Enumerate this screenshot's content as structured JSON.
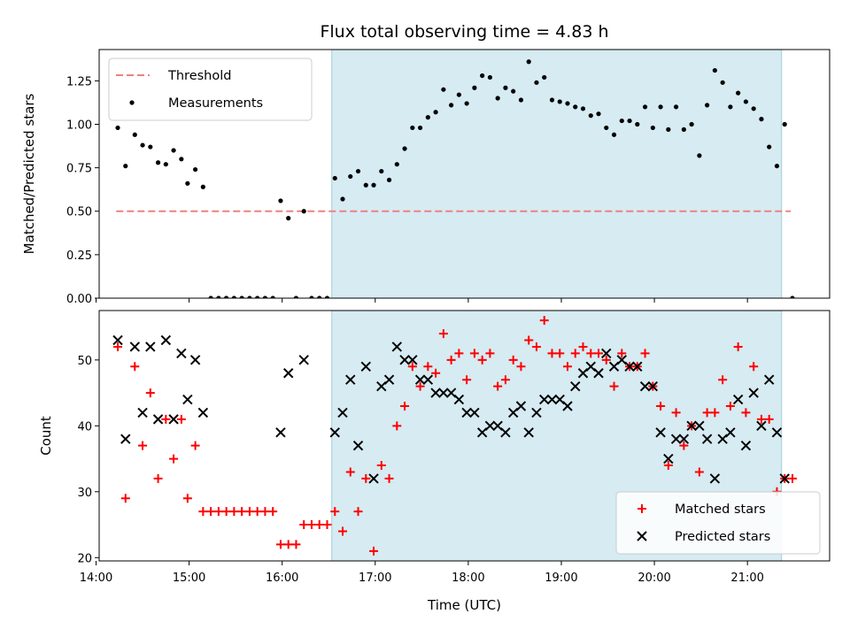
{
  "chart_data": [
    {
      "type": "scatter",
      "title": "Flux total observing time = 4.83 h",
      "xlabel": "",
      "ylabel": "Matched/Predicted stars",
      "xlim": [
        "14:02",
        "21:53"
      ],
      "ylim": [
        0,
        1.43
      ],
      "yticks": [
        "0.00",
        "0.25",
        "0.50",
        "0.75",
        "1.00",
        "1.25"
      ],
      "shaded_span": [
        "16:32",
        "21:22"
      ],
      "threshold": {
        "name": "Threshold",
        "value": 0.5,
        "x_range": [
          "14:13",
          "21:28"
        ],
        "color": "#f08080"
      },
      "legend_position": "upper left",
      "series": [
        {
          "name": "Measurements",
          "color": "#000000",
          "marker": "dot",
          "points": [
            [
              "14:14",
              0.98
            ],
            [
              "14:19",
              0.76
            ],
            [
              "14:25",
              0.94
            ],
            [
              "14:30",
              0.88
            ],
            [
              "14:35",
              0.87
            ],
            [
              "14:40",
              0.78
            ],
            [
              "14:45",
              0.77
            ],
            [
              "14:50",
              0.85
            ],
            [
              "14:55",
              0.8
            ],
            [
              "14:59",
              0.66
            ],
            [
              "15:04",
              0.74
            ],
            [
              "15:09",
              0.64
            ],
            [
              "15:14",
              0
            ],
            [
              "15:19",
              0
            ],
            [
              "15:24",
              0
            ],
            [
              "15:29",
              0
            ],
            [
              "15:34",
              0
            ],
            [
              "15:39",
              0
            ],
            [
              "15:44",
              0
            ],
            [
              "15:49",
              0
            ],
            [
              "15:54",
              0
            ],
            [
              "15:59",
              0.56
            ],
            [
              "16:04",
              0.46
            ],
            [
              "16:09",
              0
            ],
            [
              "16:14",
              0.5
            ],
            [
              "16:19",
              0
            ],
            [
              "16:24",
              0
            ],
            [
              "16:29",
              0
            ],
            [
              "16:34",
              0.69
            ],
            [
              "16:39",
              0.57
            ],
            [
              "16:44",
              0.7
            ],
            [
              "16:49",
              0.73
            ],
            [
              "16:54",
              0.65
            ],
            [
              "16:59",
              0.65
            ],
            [
              "17:04",
              0.73
            ],
            [
              "17:09",
              0.68
            ],
            [
              "17:14",
              0.77
            ],
            [
              "17:19",
              0.86
            ],
            [
              "17:24",
              0.98
            ],
            [
              "17:29",
              0.98
            ],
            [
              "17:34",
              1.04
            ],
            [
              "17:39",
              1.07
            ],
            [
              "17:44",
              1.2
            ],
            [
              "17:49",
              1.11
            ],
            [
              "17:54",
              1.17
            ],
            [
              "17:59",
              1.12
            ],
            [
              "18:04",
              1.21
            ],
            [
              "18:09",
              1.28
            ],
            [
              "18:14",
              1.27
            ],
            [
              "18:19",
              1.15
            ],
            [
              "18:24",
              1.21
            ],
            [
              "18:29",
              1.19
            ],
            [
              "18:34",
              1.14
            ],
            [
              "18:39",
              1.36
            ],
            [
              "18:44",
              1.24
            ],
            [
              "18:49",
              1.27
            ],
            [
              "18:54",
              1.14
            ],
            [
              "18:59",
              1.13
            ],
            [
              "19:04",
              1.12
            ],
            [
              "19:09",
              1.1
            ],
            [
              "19:14",
              1.09
            ],
            [
              "19:19",
              1.05
            ],
            [
              "19:24",
              1.06
            ],
            [
              "19:29",
              0.98
            ],
            [
              "19:34",
              0.94
            ],
            [
              "19:39",
              1.02
            ],
            [
              "19:44",
              1.02
            ],
            [
              "19:49",
              1.0
            ],
            [
              "19:54",
              1.1
            ],
            [
              "19:59",
              0.98
            ],
            [
              "20:04",
              1.1
            ],
            [
              "20:09",
              0.97
            ],
            [
              "20:14",
              1.1
            ],
            [
              "20:19",
              0.97
            ],
            [
              "20:24",
              1.0
            ],
            [
              "20:29",
              0.82
            ],
            [
              "20:34",
              1.11
            ],
            [
              "20:39",
              1.31
            ],
            [
              "20:44",
              1.24
            ],
            [
              "20:49",
              1.1
            ],
            [
              "20:54",
              1.18
            ],
            [
              "20:59",
              1.13
            ],
            [
              "21:04",
              1.09
            ],
            [
              "21:09",
              1.03
            ],
            [
              "21:14",
              0.87
            ],
            [
              "21:19",
              0.76
            ],
            [
              "21:24",
              1.0
            ],
            [
              "21:29",
              0
            ]
          ]
        }
      ]
    },
    {
      "type": "scatter",
      "title": "",
      "xlabel": "Time (UTC)",
      "ylabel": "Count",
      "xlim": [
        "14:02",
        "21:53"
      ],
      "ylim": [
        19.5,
        57.5
      ],
      "xticks": [
        "14:00",
        "15:00",
        "16:00",
        "17:00",
        "18:00",
        "19:00",
        "20:00",
        "21:00"
      ],
      "yticks": [
        "20",
        "30",
        "40",
        "50"
      ],
      "shaded_span": [
        "16:32",
        "21:22"
      ],
      "legend_position": "lower right",
      "series": [
        {
          "name": "Matched stars",
          "color": "#ff0000",
          "marker": "plus",
          "points": [
            [
              "14:14",
              52
            ],
            [
              "14:19",
              29
            ],
            [
              "14:25",
              49
            ],
            [
              "14:30",
              37
            ],
            [
              "14:35",
              45
            ],
            [
              "14:40",
              32
            ],
            [
              "14:45",
              41
            ],
            [
              "14:50",
              35
            ],
            [
              "14:55",
              41
            ],
            [
              "14:59",
              29
            ],
            [
              "15:04",
              37
            ],
            [
              "15:09",
              27
            ],
            [
              "15:14",
              27
            ],
            [
              "15:19",
              27
            ],
            [
              "15:24",
              27
            ],
            [
              "15:29",
              27
            ],
            [
              "15:34",
              27
            ],
            [
              "15:39",
              27
            ],
            [
              "15:44",
              27
            ],
            [
              "15:49",
              27
            ],
            [
              "15:54",
              27
            ],
            [
              "15:59",
              22
            ],
            [
              "16:04",
              22
            ],
            [
              "16:09",
              22
            ],
            [
              "16:14",
              25
            ],
            [
              "16:19",
              25
            ],
            [
              "16:24",
              25
            ],
            [
              "16:29",
              25
            ],
            [
              "16:34",
              27
            ],
            [
              "16:39",
              24
            ],
            [
              "16:44",
              33
            ],
            [
              "16:49",
              27
            ],
            [
              "16:54",
              32
            ],
            [
              "16:59",
              21
            ],
            [
              "17:04",
              34
            ],
            [
              "17:09",
              32
            ],
            [
              "17:14",
              40
            ],
            [
              "17:19",
              43
            ],
            [
              "17:24",
              49
            ],
            [
              "17:29",
              46
            ],
            [
              "17:34",
              49
            ],
            [
              "17:39",
              48
            ],
            [
              "17:44",
              54
            ],
            [
              "17:49",
              50
            ],
            [
              "17:54",
              51
            ],
            [
              "17:59",
              47
            ],
            [
              "18:04",
              51
            ],
            [
              "18:09",
              50
            ],
            [
              "18:14",
              51
            ],
            [
              "18:19",
              46
            ],
            [
              "18:24",
              47
            ],
            [
              "18:29",
              50
            ],
            [
              "18:34",
              49
            ],
            [
              "18:39",
              53
            ],
            [
              "18:44",
              52
            ],
            [
              "18:49",
              56
            ],
            [
              "18:54",
              51
            ],
            [
              "18:59",
              51
            ],
            [
              "19:04",
              49
            ],
            [
              "19:09",
              51
            ],
            [
              "19:14",
              52
            ],
            [
              "19:19",
              51
            ],
            [
              "19:24",
              51
            ],
            [
              "19:29",
              50
            ],
            [
              "19:34",
              46
            ],
            [
              "19:39",
              51
            ],
            [
              "19:44",
              49
            ],
            [
              "19:49",
              49
            ],
            [
              "19:54",
              51
            ],
            [
              "19:59",
              46
            ],
            [
              "20:04",
              43
            ],
            [
              "20:09",
              34
            ],
            [
              "20:14",
              42
            ],
            [
              "20:19",
              37
            ],
            [
              "20:24",
              40
            ],
            [
              "20:29",
              33
            ],
            [
              "20:34",
              42
            ],
            [
              "20:39",
              42
            ],
            [
              "20:44",
              47
            ],
            [
              "20:49",
              43
            ],
            [
              "20:54",
              52
            ],
            [
              "20:59",
              42
            ],
            [
              "21:04",
              49
            ],
            [
              "21:09",
              41
            ],
            [
              "21:14",
              41
            ],
            [
              "21:19",
              30
            ],
            [
              "21:24",
              32
            ],
            [
              "21:29",
              32
            ]
          ]
        },
        {
          "name": "Predicted stars",
          "color": "#000000",
          "marker": "x",
          "points": [
            [
              "14:14",
              53
            ],
            [
              "14:19",
              38
            ],
            [
              "14:25",
              52
            ],
            [
              "14:30",
              42
            ],
            [
              "14:35",
              52
            ],
            [
              "14:40",
              41
            ],
            [
              "14:45",
              53
            ],
            [
              "14:50",
              41
            ],
            [
              "14:55",
              51
            ],
            [
              "14:59",
              44
            ],
            [
              "15:04",
              50
            ],
            [
              "15:09",
              42
            ],
            [
              "15:59",
              39
            ],
            [
              "16:04",
              48
            ],
            [
              "16:14",
              50
            ],
            [
              "16:34",
              39
            ],
            [
              "16:39",
              42
            ],
            [
              "16:44",
              47
            ],
            [
              "16:49",
              37
            ],
            [
              "16:54",
              49
            ],
            [
              "16:59",
              32
            ],
            [
              "17:04",
              46
            ],
            [
              "17:09",
              47
            ],
            [
              "17:14",
              52
            ],
            [
              "17:19",
              50
            ],
            [
              "17:24",
              50
            ],
            [
              "17:29",
              47
            ],
            [
              "17:34",
              47
            ],
            [
              "17:39",
              45
            ],
            [
              "17:44",
              45
            ],
            [
              "17:49",
              45
            ],
            [
              "17:54",
              44
            ],
            [
              "17:59",
              42
            ],
            [
              "18:04",
              42
            ],
            [
              "18:09",
              39
            ],
            [
              "18:14",
              40
            ],
            [
              "18:19",
              40
            ],
            [
              "18:24",
              39
            ],
            [
              "18:29",
              42
            ],
            [
              "18:34",
              43
            ],
            [
              "18:39",
              39
            ],
            [
              "18:44",
              42
            ],
            [
              "18:49",
              44
            ],
            [
              "18:54",
              44
            ],
            [
              "18:59",
              44
            ],
            [
              "19:04",
              43
            ],
            [
              "19:09",
              46
            ],
            [
              "19:14",
              48
            ],
            [
              "19:19",
              49
            ],
            [
              "19:24",
              48
            ],
            [
              "19:29",
              51
            ],
            [
              "19:34",
              49
            ],
            [
              "19:39",
              50
            ],
            [
              "19:44",
              49
            ],
            [
              "19:49",
              49
            ],
            [
              "19:54",
              46
            ],
            [
              "19:59",
              46
            ],
            [
              "20:04",
              39
            ],
            [
              "20:09",
              35
            ],
            [
              "20:14",
              38
            ],
            [
              "20:19",
              38
            ],
            [
              "20:24",
              40
            ],
            [
              "20:29",
              40
            ],
            [
              "20:34",
              38
            ],
            [
              "20:39",
              32
            ],
            [
              "20:44",
              38
            ],
            [
              "20:49",
              39
            ],
            [
              "20:54",
              44
            ],
            [
              "20:59",
              37
            ],
            [
              "21:04",
              45
            ],
            [
              "21:09",
              40
            ],
            [
              "21:14",
              47
            ],
            [
              "21:19",
              39
            ],
            [
              "21:24",
              32
            ]
          ]
        }
      ]
    }
  ]
}
